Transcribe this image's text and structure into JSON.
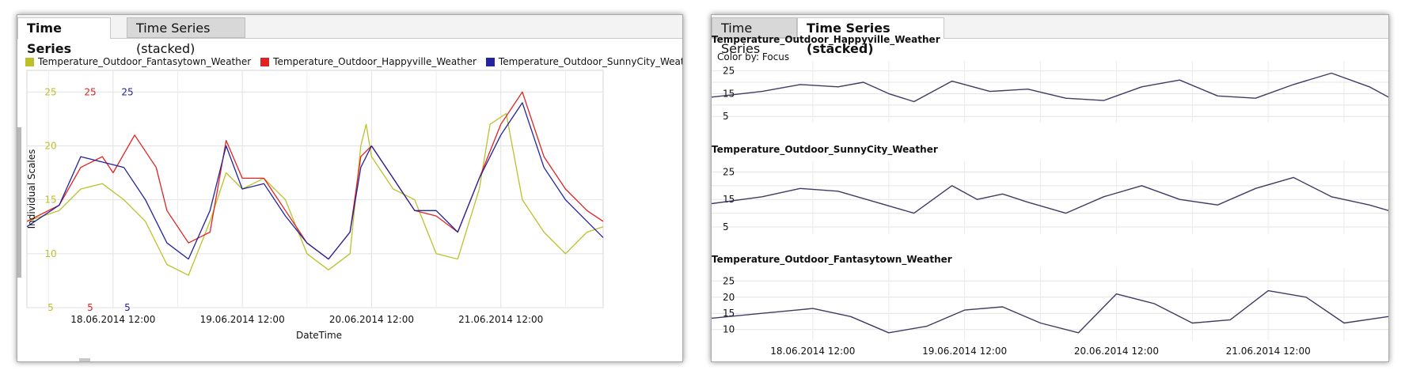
{
  "left_panel": {
    "tabs": [
      {
        "label": "Time Series",
        "active": true
      },
      {
        "label": "Time Series (stacked)",
        "active": false
      }
    ]
  },
  "right_panel": {
    "tabs": [
      {
        "label": "Time Series",
        "active": false
      },
      {
        "label": "Time Series (stacked)",
        "active": true
      }
    ],
    "color_by": "Color by: Focus"
  },
  "chart_data": [
    {
      "type": "line",
      "title": "",
      "xlabel": "DateTime",
      "ylabel": "Individual Scales",
      "legend_position": "top",
      "grid": true,
      "x_start": "17.06.2014 20:00",
      "x_end": "22.06.2014 07:00",
      "x_tick_labels": [
        "18.06.2014 12:00",
        "19.06.2014 12:00",
        "20.06.2014 12:00",
        "21.06.2014 12:00"
      ],
      "y_tick_labels": [
        "5",
        "10",
        "15",
        "20",
        "25"
      ],
      "scale_labels": [
        {
          "series": "Temperature_Outdoor_Fantasytown_Weather",
          "min": "5",
          "max": "25"
        },
        {
          "series": "Temperature_Outdoor_Happyville_Weather",
          "min": "5",
          "max": "25"
        },
        {
          "series": "Temperature_Outdoor_SunnyCity_Weather",
          "min": "5",
          "max": "25"
        }
      ],
      "ylim": [
        5,
        27
      ],
      "series": [
        {
          "name": "Temperature_Outdoor_Fantasytown_Weather",
          "color": "#bcc12b",
          "x": [
            "17.06.2014 20:00",
            "18.06.2014 02:00",
            "18.06.2014 06:00",
            "18.06.2014 10:00",
            "18.06.2014 14:00",
            "18.06.2014 18:00",
            "18.06.2014 22:00",
            "19.06.2014 02:00",
            "19.06.2014 06:00",
            "19.06.2014 09:00",
            "19.06.2014 12:00",
            "19.06.2014 16:00",
            "19.06.2014 20:00",
            "20.06.2014 00:00",
            "20.06.2014 04:00",
            "20.06.2014 08:00",
            "20.06.2014 10:00",
            "20.06.2014 11:00",
            "20.06.2014 12:00",
            "20.06.2014 16:00",
            "20.06.2014 20:00",
            "21.06.2014 00:00",
            "21.06.2014 04:00",
            "21.06.2014 08:00",
            "21.06.2014 10:00",
            "21.06.2014 13:00",
            "21.06.2014 16:00",
            "21.06.2014 20:00",
            "22.06.2014 00:00",
            "22.06.2014 04:00",
            "22.06.2014 07:00"
          ],
          "y": [
            13,
            14,
            16,
            16.5,
            15,
            13,
            9,
            8,
            13,
            17.5,
            16,
            17,
            15,
            10,
            8.5,
            10,
            20,
            22,
            19,
            16,
            15,
            10,
            9.5,
            16,
            22,
            23,
            15,
            12,
            10,
            12,
            12.5
          ]
        },
        {
          "name": "Temperature_Outdoor_Happyville_Weather",
          "color": "#e12222",
          "x": [
            "17.06.2014 20:00",
            "18.06.2014 02:00",
            "18.06.2014 06:00",
            "18.06.2014 10:00",
            "18.06.2014 12:00",
            "18.06.2014 16:00",
            "18.06.2014 20:00",
            "18.06.2014 22:00",
            "19.06.2014 02:00",
            "19.06.2014 06:00",
            "19.06.2014 09:00",
            "19.06.2014 12:00",
            "19.06.2014 16:00",
            "19.06.2014 20:00",
            "20.06.2014 00:00",
            "20.06.2014 04:00",
            "20.06.2014 08:00",
            "20.06.2014 10:00",
            "20.06.2014 12:00",
            "20.06.2014 16:00",
            "20.06.2014 20:00",
            "21.06.2014 00:00",
            "21.06.2014 04:00",
            "21.06.2014 08:00",
            "21.06.2014 12:00",
            "21.06.2014 16:00",
            "21.06.2014 20:00",
            "22.06.2014 00:00",
            "22.06.2014 04:00",
            "22.06.2014 07:00"
          ],
          "y": [
            13,
            14.5,
            18,
            19,
            17.5,
            21,
            18,
            14,
            11,
            12,
            20.5,
            17,
            17,
            14,
            11,
            9.5,
            12,
            19,
            20,
            17,
            14,
            13.5,
            12,
            17,
            22,
            25,
            19,
            16,
            14,
            13
          ]
        },
        {
          "name": "Temperature_Outdoor_SunnyCity_Weather",
          "color": "#23239b",
          "x": [
            "17.06.2014 20:00",
            "18.06.2014 02:00",
            "18.06.2014 06:00",
            "18.06.2014 10:00",
            "18.06.2014 14:00",
            "18.06.2014 18:00",
            "18.06.2014 22:00",
            "19.06.2014 02:00",
            "19.06.2014 06:00",
            "19.06.2014 09:00",
            "19.06.2014 12:00",
            "19.06.2014 16:00",
            "19.06.2014 20:00",
            "20.06.2014 00:00",
            "20.06.2014 04:00",
            "20.06.2014 08:00",
            "20.06.2014 10:00",
            "20.06.2014 12:00",
            "20.06.2014 16:00",
            "20.06.2014 20:00",
            "21.06.2014 00:00",
            "21.06.2014 04:00",
            "21.06.2014 08:00",
            "21.06.2014 12:00",
            "21.06.2014 16:00",
            "21.06.2014 20:00",
            "22.06.2014 00:00",
            "22.06.2014 04:00",
            "22.06.2014 07:00"
          ],
          "y": [
            12.5,
            14.5,
            19,
            18.5,
            18,
            15,
            11,
            9.5,
            14,
            20,
            16,
            16.5,
            13.5,
            11,
            9.5,
            12,
            18,
            20,
            17,
            14,
            14,
            12,
            17,
            21,
            24,
            18,
            15,
            13,
            11.5
          ]
        }
      ]
    },
    {
      "type": "line",
      "title": "Temperature_Outdoor_Happyville_Weather",
      "color": "#3c3c64",
      "xlabel": "",
      "ylabel": "",
      "y_tick_labels": [
        "5",
        "15",
        "25"
      ],
      "ylim": [
        3,
        28
      ],
      "x": [
        "17.06.2014 20:00",
        "18.06.2014 04:00",
        "18.06.2014 10:00",
        "18.06.2014 16:00",
        "18.06.2014 20:00",
        "19.06.2014 00:00",
        "19.06.2014 04:00",
        "19.06.2014 10:00",
        "19.06.2014 16:00",
        "19.06.2014 22:00",
        "20.06.2014 04:00",
        "20.06.2014 10:00",
        "20.06.2014 16:00",
        "20.06.2014 22:00",
        "21.06.2014 04:00",
        "21.06.2014 10:00",
        "21.06.2014 16:00",
        "21.06.2014 22:00",
        "22.06.2014 04:00",
        "22.06.2014 07:00"
      ],
      "y": [
        13.5,
        16,
        19,
        18,
        20,
        15,
        11.5,
        20.5,
        16,
        17,
        13,
        12,
        18,
        21,
        14,
        13,
        19,
        24,
        18,
        13.5
      ]
    },
    {
      "type": "line",
      "title": "Temperature_Outdoor_SunnyCity_Weather",
      "color": "#3c3c64",
      "xlabel": "",
      "ylabel": "",
      "y_tick_labels": [
        "5",
        "15",
        "25"
      ],
      "ylim": [
        3,
        28
      ],
      "x": [
        "17.06.2014 20:00",
        "18.06.2014 04:00",
        "18.06.2014 10:00",
        "18.06.2014 16:00",
        "18.06.2014 22:00",
        "19.06.2014 04:00",
        "19.06.2014 10:00",
        "19.06.2014 14:00",
        "19.06.2014 18:00",
        "19.06.2014 22:00",
        "20.06.2014 04:00",
        "20.06.2014 10:00",
        "20.06.2014 16:00",
        "20.06.2014 22:00",
        "21.06.2014 04:00",
        "21.06.2014 10:00",
        "21.06.2014 16:00",
        "21.06.2014 22:00",
        "22.06.2014 04:00",
        "22.06.2014 07:00"
      ],
      "y": [
        13.5,
        16,
        19,
        18,
        14,
        10,
        20,
        15,
        17,
        14,
        10,
        16,
        20,
        15,
        13,
        19,
        23,
        16,
        13,
        11
      ]
    },
    {
      "type": "line",
      "title": "Temperature_Outdoor_Fantasytown_Weather",
      "color": "#3c3c64",
      "xlabel": "",
      "ylabel": "",
      "x_tick_labels": [
        "18.06.2014 12:00",
        "19.06.2014 12:00",
        "20.06.2014 12:00",
        "21.06.2014 12:00"
      ],
      "y_tick_labels": [
        "10",
        "15",
        "20",
        "25"
      ],
      "ylim": [
        7,
        28
      ],
      "x": [
        "17.06.2014 20:00",
        "18.06.2014 04:00",
        "18.06.2014 12:00",
        "18.06.2014 18:00",
        "19.06.2014 00:00",
        "19.06.2014 06:00",
        "19.06.2014 12:00",
        "19.06.2014 18:00",
        "20.06.2014 00:00",
        "20.06.2014 06:00",
        "20.06.2014 12:00",
        "20.06.2014 18:00",
        "21.06.2014 00:00",
        "21.06.2014 06:00",
        "21.06.2014 12:00",
        "21.06.2014 18:00",
        "22.06.2014 00:00",
        "22.06.2014 07:00"
      ],
      "y": [
        13.5,
        15,
        16.5,
        14,
        9,
        11,
        16,
        17,
        12,
        9,
        21,
        18,
        12,
        13,
        22,
        20,
        12,
        14
      ]
    }
  ]
}
